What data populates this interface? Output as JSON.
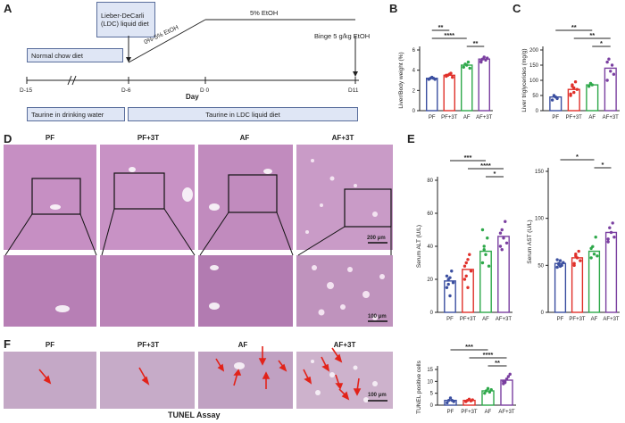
{
  "panels": {
    "A": "A",
    "B": "B",
    "C": "C",
    "D": "D",
    "E": "E",
    "F": "F"
  },
  "timeline": {
    "ldc_box": "Lieber-DeCarli (LDC) liquid diet",
    "ramp": "0%-5% EtOH",
    "plateau": "5% EtOH",
    "binge": "Binge 5 g/kg EtOH",
    "normal_chow": "Normal chow diet",
    "days": [
      "D-15",
      "D-6",
      "D 0",
      "D11"
    ],
    "day_axis": "Day",
    "taurine_water": "Taurine in drinking water",
    "taurine_ldc": "Taurine in LDC liquid diet"
  },
  "histology": {
    "groups": [
      "PF",
      "PF+3T",
      "AF",
      "AF+3T"
    ],
    "scale_top": "200 μm",
    "scale_bottom": "100 μm",
    "tunel_scale": "100 μm",
    "tunel_title": "TUNEL Assay"
  },
  "colors": {
    "PF": "#3b4fa0",
    "PF+3T": "#e0302a",
    "AF": "#2ea84a",
    "AF+3T": "#7a3fa0",
    "he": "#c78fc4",
    "tunel": "#c4a7c4",
    "arrow": "#e2231a"
  },
  "chart_data": [
    {
      "id": "B",
      "type": "bar",
      "categories": [
        "PF",
        "PF+3T",
        "AF",
        "AF+3T"
      ],
      "ylabel": "Liver/Body weight (%)",
      "ylim": [
        0,
        6
      ],
      "yticks": [
        0,
        2,
        4,
        6
      ],
      "values": [
        3.2,
        3.5,
        4.5,
        5.1
      ],
      "points": [
        [
          3.1,
          3.2,
          3.3,
          3.2,
          3.1
        ],
        [
          3.4,
          3.5,
          3.6,
          3.7,
          3.3,
          3.5
        ],
        [
          4.3,
          4.6,
          4.5,
          4.8,
          4.2
        ],
        [
          4.9,
          5.1,
          5.3,
          5.0,
          5.2,
          4.8
        ]
      ],
      "sig": [
        "**",
        "****",
        "**"
      ]
    },
    {
      "id": "C",
      "type": "bar",
      "categories": [
        "PF",
        "PF+3T",
        "AF",
        "AF+3T"
      ],
      "ylabel": "Liver triglycerides (mg/g)",
      "ylim": [
        0,
        200
      ],
      "yticks": [
        0,
        50,
        100,
        150,
        200
      ],
      "values": [
        45,
        70,
        85,
        140
      ],
      "points": [
        [
          35,
          50,
          45,
          40
        ],
        [
          55,
          80,
          60,
          95,
          70,
          50,
          85,
          75
        ],
        [
          80,
          90,
          85
        ],
        [
          100,
          170,
          130,
          150,
          120,
          160
        ]
      ],
      "sig": [
        "**",
        "**",
        "*"
      ]
    },
    {
      "id": "E1",
      "type": "bar",
      "categories": [
        "PF",
        "PF+3T",
        "AF",
        "AF+3T"
      ],
      "ylabel": "Serum ALT (U/L)",
      "ylim": [
        0,
        80
      ],
      "yticks": [
        0,
        20,
        40,
        60,
        80
      ],
      "values": [
        19,
        26,
        37,
        46
      ],
      "points": [
        [
          15,
          20,
          10,
          25,
          18,
          22,
          17,
          21
        ],
        [
          20,
          30,
          15,
          35,
          25,
          28,
          22,
          32
        ],
        [
          30,
          40,
          35,
          45,
          28,
          50,
          38
        ],
        [
          40,
          50,
          45,
          55,
          42,
          48,
          38
        ]
      ],
      "sig": [
        "***",
        "****",
        "*"
      ]
    },
    {
      "id": "E2",
      "type": "bar",
      "categories": [
        "PF",
        "PF+3T",
        "AF",
        "AF+3T"
      ],
      "ylabel": "Serum AST (U/L)",
      "ylim": [
        0,
        150
      ],
      "yticks": [
        0,
        50,
        100,
        150
      ],
      "values": [
        52,
        58,
        65,
        85
      ],
      "points": [
        [
          48,
          52,
          55,
          50,
          53,
          56,
          51,
          49
        ],
        [
          52,
          60,
          58,
          65,
          55,
          50,
          62
        ],
        [
          58,
          70,
          62,
          80,
          60,
          68
        ],
        [
          75,
          90,
          85,
          95,
          80,
          78
        ]
      ],
      "sig": [
        "*",
        "*"
      ]
    },
    {
      "id": "F",
      "type": "bar",
      "categories": [
        "PF",
        "PF+3T",
        "AF",
        "AF+3T"
      ],
      "ylabel": "TUNEL positive cells",
      "ylim": [
        0,
        15
      ],
      "yticks": [
        0,
        5,
        10,
        15
      ],
      "values": [
        2,
        2,
        6,
        10.5
      ],
      "points": [
        [
          1,
          2,
          3,
          2,
          1.5
        ],
        [
          1.5,
          2,
          2.5,
          1.8,
          2.2,
          1.6
        ],
        [
          5,
          6,
          7,
          5.5,
          6.5
        ],
        [
          9,
          10,
          11,
          12,
          13,
          10,
          9.5
        ]
      ],
      "sig": [
        "***",
        "****",
        "**"
      ]
    }
  ]
}
